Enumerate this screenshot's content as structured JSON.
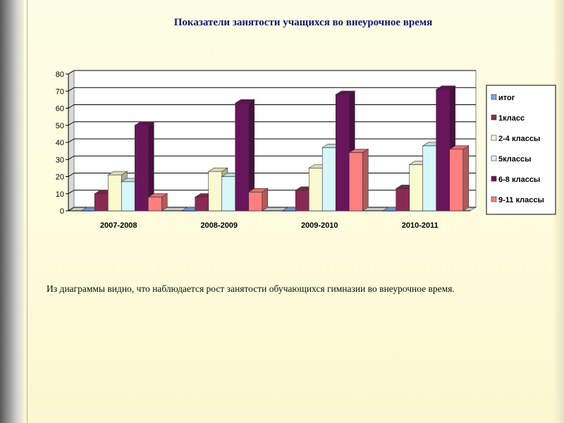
{
  "title": "Показатели занятости учащихся во внеурочное время",
  "caption": "Из  диаграммы  видно, что  наблюдается рост занятости обучающихся гимназии во внеурочное время.",
  "chart_data": {
    "type": "bar",
    "categories": [
      "2007-2008",
      "2008-2009",
      "2009-2010",
      "2010-2011"
    ],
    "ylim": [
      0,
      80
    ],
    "yticks": [
      0,
      10,
      20,
      30,
      40,
      50,
      60,
      70,
      80
    ],
    "grid": true,
    "legend_position": "right",
    "series": [
      {
        "name": "итог",
        "color": "#7da8e0",
        "values": [
          0,
          0,
          0,
          0
        ]
      },
      {
        "name": "1класс",
        "color": "#8a2a54",
        "values": [
          10,
          8,
          12,
          13
        ]
      },
      {
        "name": "2-4 классы",
        "color": "#fbf9cf",
        "values": [
          21,
          23,
          25,
          27
        ]
      },
      {
        "name": "5классы",
        "color": "#d7f7fa",
        "values": [
          17,
          20,
          37,
          38
        ]
      },
      {
        "name": "6-8 классы",
        "color": "#68155c",
        "values": [
          50,
          63,
          68,
          71
        ]
      },
      {
        "name": "9-11 классы",
        "color": "#ff7f7f",
        "values": [
          8,
          11,
          34,
          36
        ]
      }
    ]
  }
}
